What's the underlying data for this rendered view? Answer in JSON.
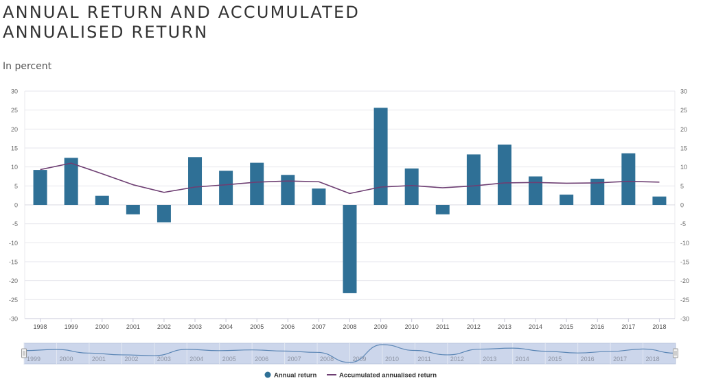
{
  "header": {
    "title_line1": "ANNUAL RETURN AND ACCUMULATED",
    "title_line2": "ANNUALISED RETURN",
    "subtitle": "In percent"
  },
  "chart_data": {
    "type": "bar",
    "categories": [
      "1998",
      "1999",
      "2000",
      "2001",
      "2002",
      "2003",
      "2004",
      "2005",
      "2006",
      "2007",
      "2008",
      "2009",
      "2010",
      "2011",
      "2012",
      "2013",
      "2014",
      "2015",
      "2016",
      "2017",
      "2018"
    ],
    "series": [
      {
        "name": "Annual return",
        "type": "bar",
        "color": "#2f7096",
        "values": [
          9.2,
          12.4,
          2.4,
          -2.5,
          -4.6,
          12.6,
          9.0,
          11.1,
          7.9,
          4.3,
          -23.3,
          25.6,
          9.6,
          -2.5,
          13.3,
          15.9,
          7.5,
          2.7,
          6.9,
          13.6,
          2.2
        ]
      },
      {
        "name": "Accumulated annualised return",
        "type": "line",
        "color": "#6e3f73",
        "values": [
          9.3,
          11.0,
          8.2,
          5.3,
          3.3,
          4.7,
          5.3,
          6.0,
          6.3,
          6.1,
          3.0,
          4.7,
          5.1,
          4.5,
          5.0,
          5.8,
          5.9,
          5.7,
          5.8,
          6.2,
          6.0
        ]
      }
    ],
    "yaxis": {
      "min": -30,
      "max": 30,
      "tick_step": 5,
      "tick_labels": [
        "30",
        "25",
        "20",
        "15",
        "10",
        "5",
        "0",
        "-5",
        "-10",
        "-15",
        "-20",
        "-25",
        "-30"
      ]
    },
    "legend": {
      "position": "bottom-center"
    },
    "navigator": {
      "labels": [
        "1999",
        "2000",
        "2001",
        "2002",
        "2003",
        "2004",
        "2005",
        "2006",
        "2007",
        "2008",
        "2009",
        "2010",
        "2011",
        "2012",
        "2013",
        "2014",
        "2015",
        "2016",
        "2017",
        "2018"
      ]
    }
  }
}
